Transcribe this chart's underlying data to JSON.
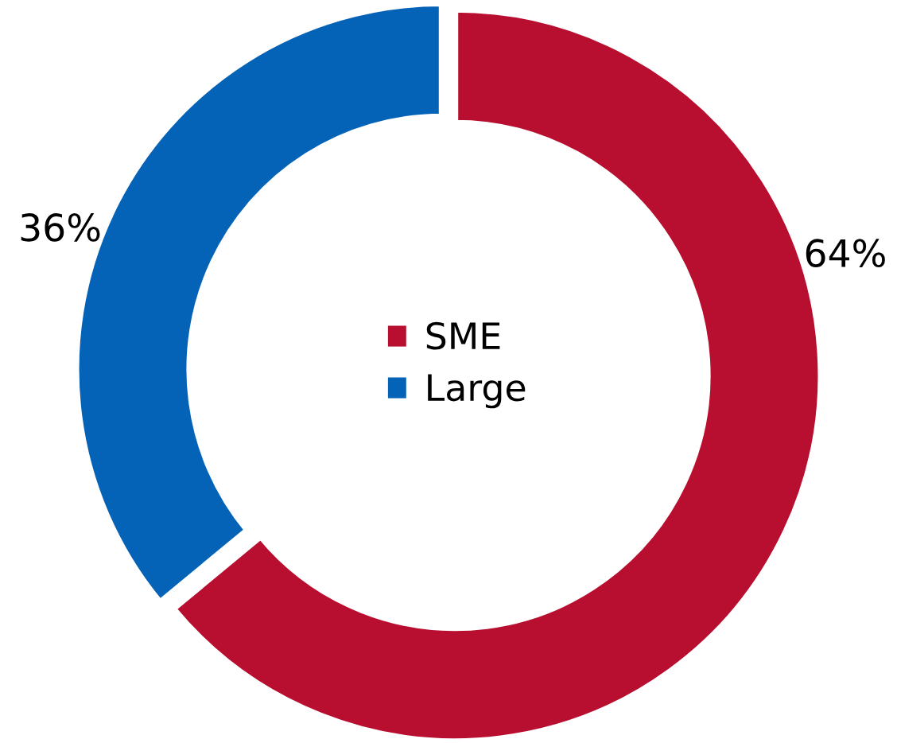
{
  "chart_data": {
    "type": "donut",
    "categories": [
      "SME",
      "Large"
    ],
    "values": [
      64,
      36
    ],
    "colors": [
      "#b80f30",
      "#0563b7"
    ],
    "value_labels": [
      "64%",
      "36%"
    ],
    "legend": "center"
  }
}
